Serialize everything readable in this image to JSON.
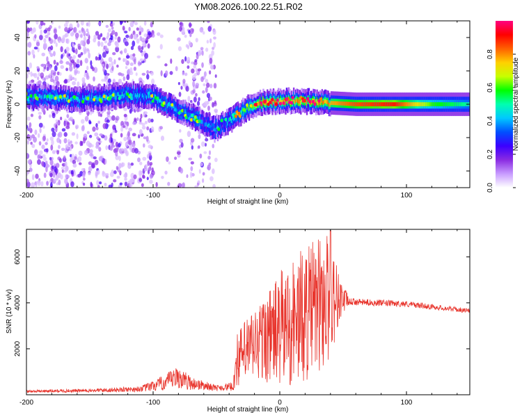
{
  "figure_title": "YM08.2026.100.22.51.R02",
  "chart_data": [
    {
      "type": "heatmap",
      "title": "YM08.2026.100.22.51.R02",
      "xlabel": "Height of straight line (km)",
      "ylabel": "Frequency (Hz)",
      "xlim": [
        -200,
        150
      ],
      "ylim": [
        -50,
        50
      ],
      "xticks": [
        -200,
        -100,
        0,
        100
      ],
      "yticks": [
        -40,
        -20,
        0,
        20,
        40
      ],
      "colorbar": {
        "label": "Normalized spectral amplitude",
        "range": [
          0,
          1
        ],
        "ticks": [
          0.0,
          0.2,
          0.4,
          0.6,
          0.8
        ],
        "colormap": [
          "#ffffff",
          "#c89bff",
          "#8a2be2",
          "#3b00ff",
          "#0050ff",
          "#00c8ff",
          "#00ffb0",
          "#00ff00",
          "#c8ff00",
          "#ffd000",
          "#ff6000",
          "#ff0000",
          "#ff0080"
        ]
      },
      "ridge": {
        "description_points": [
          {
            "x": -200,
            "f": 4,
            "a": 0.35
          },
          {
            "x": -180,
            "f": 4,
            "a": 0.45
          },
          {
            "x": -160,
            "f": 3,
            "a": 0.4
          },
          {
            "x": -140,
            "f": 4,
            "a": 0.45
          },
          {
            "x": -120,
            "f": 6,
            "a": 0.4
          },
          {
            "x": -100,
            "f": 4,
            "a": 0.4
          },
          {
            "x": -90,
            "f": 0,
            "a": 0.4
          },
          {
            "x": -75,
            "f": -5,
            "a": 0.4
          },
          {
            "x": -60,
            "f": -11,
            "a": 0.35
          },
          {
            "x": -52,
            "f": -15,
            "a": 0.3
          },
          {
            "x": -45,
            "f": -12,
            "a": 0.3
          },
          {
            "x": -40,
            "f": -10,
            "a": 0.45
          },
          {
            "x": -35,
            "f": -7,
            "a": 0.5
          },
          {
            "x": -25,
            "f": -2,
            "a": 0.6
          },
          {
            "x": -15,
            "f": 1,
            "a": 0.8
          },
          {
            "x": 0,
            "f": 2,
            "a": 0.75
          },
          {
            "x": 15,
            "f": 2,
            "a": 0.8
          },
          {
            "x": 35,
            "f": 1,
            "a": 0.75
          },
          {
            "x": 60,
            "f": 0,
            "a": 0.85
          },
          {
            "x": 90,
            "f": 0,
            "a": 0.9
          },
          {
            "x": 120,
            "f": 0,
            "a": 0.6
          },
          {
            "x": 150,
            "f": 0,
            "a": 0.5
          }
        ]
      }
    },
    {
      "type": "line",
      "xlabel": "Height of straight line (km)",
      "ylabel": "SNR (10 * v/v)",
      "xlim": [
        -200,
        150
      ],
      "ylim": [
        0,
        7200
      ],
      "xticks": [
        -200,
        -100,
        0,
        100
      ],
      "yticks": [
        2000,
        4000,
        6000
      ],
      "series_color": "#e8352d",
      "series": [
        {
          "name": "SNR",
          "envelope": [
            {
              "x": -200,
              "mean": 150,
              "spread": 60
            },
            {
              "x": -150,
              "mean": 180,
              "spread": 80
            },
            {
              "x": -110,
              "mean": 250,
              "spread": 120
            },
            {
              "x": -95,
              "mean": 450,
              "spread": 300
            },
            {
              "x": -80,
              "mean": 750,
              "spread": 500
            },
            {
              "x": -70,
              "mean": 500,
              "spread": 300
            },
            {
              "x": -50,
              "mean": 300,
              "spread": 120
            },
            {
              "x": -37,
              "mean": 350,
              "spread": 200
            },
            {
              "x": -34,
              "mean": 1500,
              "spread": 1200
            },
            {
              "x": -25,
              "mean": 2000,
              "spread": 1500
            },
            {
              "x": -10,
              "mean": 2500,
              "spread": 2000
            },
            {
              "x": 5,
              "mean": 3000,
              "spread": 2800
            },
            {
              "x": 20,
              "mean": 3500,
              "spread": 3000
            },
            {
              "x": 38,
              "mean": 4200,
              "spread": 3000
            },
            {
              "x": 48,
              "mean": 4200,
              "spread": 900
            },
            {
              "x": 55,
              "mean": 4050,
              "spread": 150
            },
            {
              "x": 100,
              "mean": 3950,
              "spread": 130
            },
            {
              "x": 150,
              "mean": 3650,
              "spread": 100
            }
          ],
          "peak": {
            "x": 40,
            "value": 7150
          }
        }
      ]
    }
  ]
}
